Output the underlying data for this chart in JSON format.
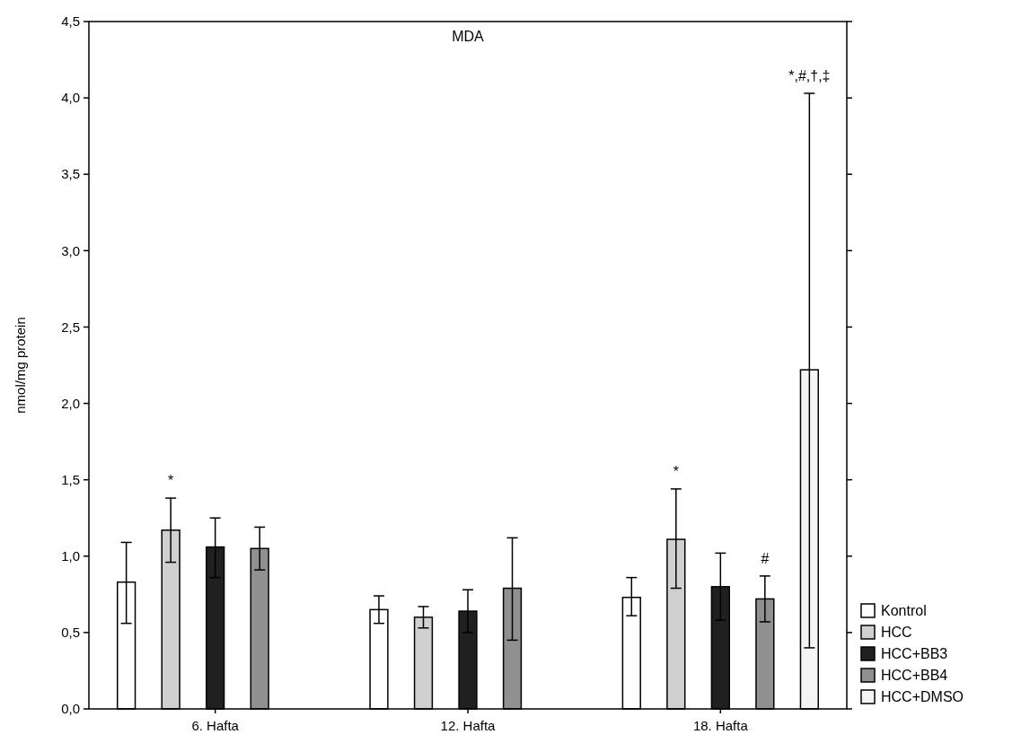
{
  "chart_data": {
    "type": "bar",
    "title": "MDA",
    "ylabel": "nmol/mg protein",
    "categories": [
      "6. Hafta",
      "12. Hafta",
      "18. Hafta"
    ],
    "series": [
      {
        "name": "Kontrol",
        "color": "#ffffff",
        "values": [
          0.83,
          0.65,
          0.73
        ],
        "errors": [
          [
            0.56,
            1.09
          ],
          [
            0.56,
            0.74
          ],
          [
            0.61,
            0.86
          ]
        ]
      },
      {
        "name": "HCC",
        "color": "#d0d0d0",
        "values": [
          1.17,
          0.6,
          1.11
        ],
        "errors": [
          [
            0.96,
            1.38
          ],
          [
            0.53,
            0.67
          ],
          [
            0.79,
            1.44
          ]
        ]
      },
      {
        "name": "HCC+BB3",
        "color": "#202020",
        "values": [
          1.06,
          0.64,
          0.8
        ],
        "errors": [
          [
            0.86,
            1.25
          ],
          [
            0.5,
            0.78
          ],
          [
            0.58,
            1.02
          ]
        ]
      },
      {
        "name": "HCC+BB4",
        "color": "#909090",
        "values": [
          1.05,
          0.79,
          0.72
        ],
        "errors": [
          [
            0.91,
            1.19
          ],
          [
            0.45,
            1.12
          ],
          [
            0.57,
            0.87
          ]
        ]
      },
      {
        "name": "HCC+DMSO",
        "color": "#f4f4f4",
        "values": [
          null,
          null,
          2.22
        ],
        "errors": [
          null,
          null,
          [
            0.4,
            4.03
          ]
        ]
      }
    ],
    "ylim": [
      0,
      4.5
    ],
    "yticks": [
      {
        "value": 0,
        "label": "0,0"
      },
      {
        "value": 0.5,
        "label": "0,5"
      },
      {
        "value": 1,
        "label": "1,0"
      },
      {
        "value": 1.5,
        "label": "1,5"
      },
      {
        "value": 2,
        "label": "2,0"
      },
      {
        "value": 2.5,
        "label": "2,5"
      },
      {
        "value": 3,
        "label": "3,0"
      },
      {
        "value": 3.5,
        "label": "3,5"
      },
      {
        "value": 4,
        "label": "4,0"
      },
      {
        "value": 4.5,
        "label": "4,5"
      }
    ],
    "annotations": [
      {
        "text": "*",
        "y": 1.38
      },
      {
        "text": "*",
        "y": 1.44
      },
      {
        "text": "#",
        "y": 0.87
      },
      {
        "text": "*,#,†,‡",
        "y": 4.03
      }
    ],
    "legend": "bottom right",
    "grid": false
  }
}
